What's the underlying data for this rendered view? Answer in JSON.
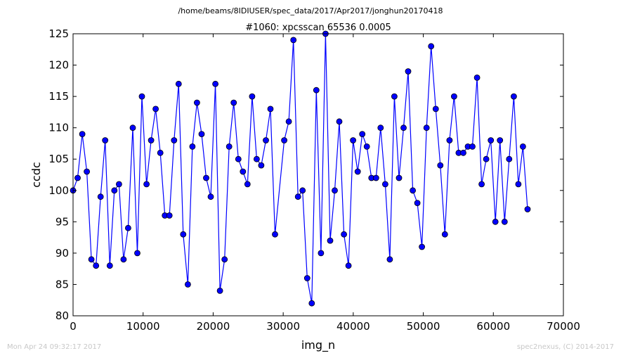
{
  "chart_data": {
    "type": "line",
    "suptitle": "/home/beams/8IDIUSER/spec_data/2017/Apr2017/jonghun20170418",
    "title": "#1060: xpcsscan 65536 0.0005",
    "xlabel": "img_n",
    "ylabel": "ccdc",
    "xlim": [
      0,
      70000
    ],
    "ylim": [
      80,
      125
    ],
    "xticks": [
      "0",
      "10000",
      "20000",
      "30000",
      "40000",
      "50000",
      "60000",
      "70000"
    ],
    "yticks": [
      "80",
      "85",
      "90",
      "95",
      "100",
      "105",
      "110",
      "115",
      "120",
      "125"
    ],
    "grid": false,
    "line_color": "#0000ff",
    "marker_color": "#0000ff",
    "marker_edge_color": "#000000",
    "x": [
      0,
      655,
      1311,
      1966,
      2621,
      3277,
      3932,
      4588,
      5243,
      5898,
      6554,
      7209,
      7864,
      8520,
      9175,
      9830,
      10486,
      11141,
      11796,
      12452,
      13107,
      13763,
      14418,
      15073,
      15729,
      16384,
      17039,
      17695,
      18350,
      19005,
      19661,
      20316,
      20972,
      21627,
      22282,
      22938,
      23593,
      24248,
      24904,
      25559,
      26214,
      26870,
      27525,
      28180,
      28836,
      30146,
      30802,
      31457,
      32113,
      32768,
      33423,
      34079,
      34734,
      35389,
      36045,
      36700,
      37356,
      38011,
      38666,
      39322,
      39977,
      40632,
      41288,
      41943,
      42598,
      43254,
      43909,
      44564,
      45220,
      45875,
      46531,
      47186,
      47841,
      48497,
      49152,
      49807,
      50463,
      51118,
      51773,
      52429,
      53084,
      53740,
      54395,
      55050,
      55706,
      56361,
      57016,
      57672,
      58327,
      58982,
      59638,
      60293,
      60948,
      61604,
      62259,
      62915,
      63570,
      64225,
      64881
    ],
    "y": [
      100,
      102,
      109,
      103,
      89,
      88,
      99,
      108,
      88,
      100,
      101,
      89,
      94,
      110,
      90,
      115,
      101,
      108,
      113,
      106,
      96,
      96,
      108,
      117,
      93,
      85,
      107,
      114,
      109,
      102,
      99,
      117,
      84,
      89,
      107,
      114,
      105,
      103,
      101,
      115,
      105,
      104,
      108,
      113,
      93,
      108,
      111,
      124,
      99,
      100,
      86,
      82,
      116,
      90,
      125,
      92,
      100,
      111,
      93,
      88,
      108,
      103,
      109,
      107,
      102,
      102,
      110,
      101,
      89,
      115,
      102,
      110,
      119,
      100,
      98,
      91,
      110,
      123,
      113,
      104,
      93,
      108,
      115,
      106,
      106,
      107,
      107,
      118,
      101,
      105,
      108,
      95,
      108,
      95,
      105,
      115,
      101,
      107,
      97
    ]
  },
  "footer": {
    "timestamp": "Mon Apr 24 09:32:17 2017",
    "credit": "spec2nexus, (C) 2014-2017"
  }
}
